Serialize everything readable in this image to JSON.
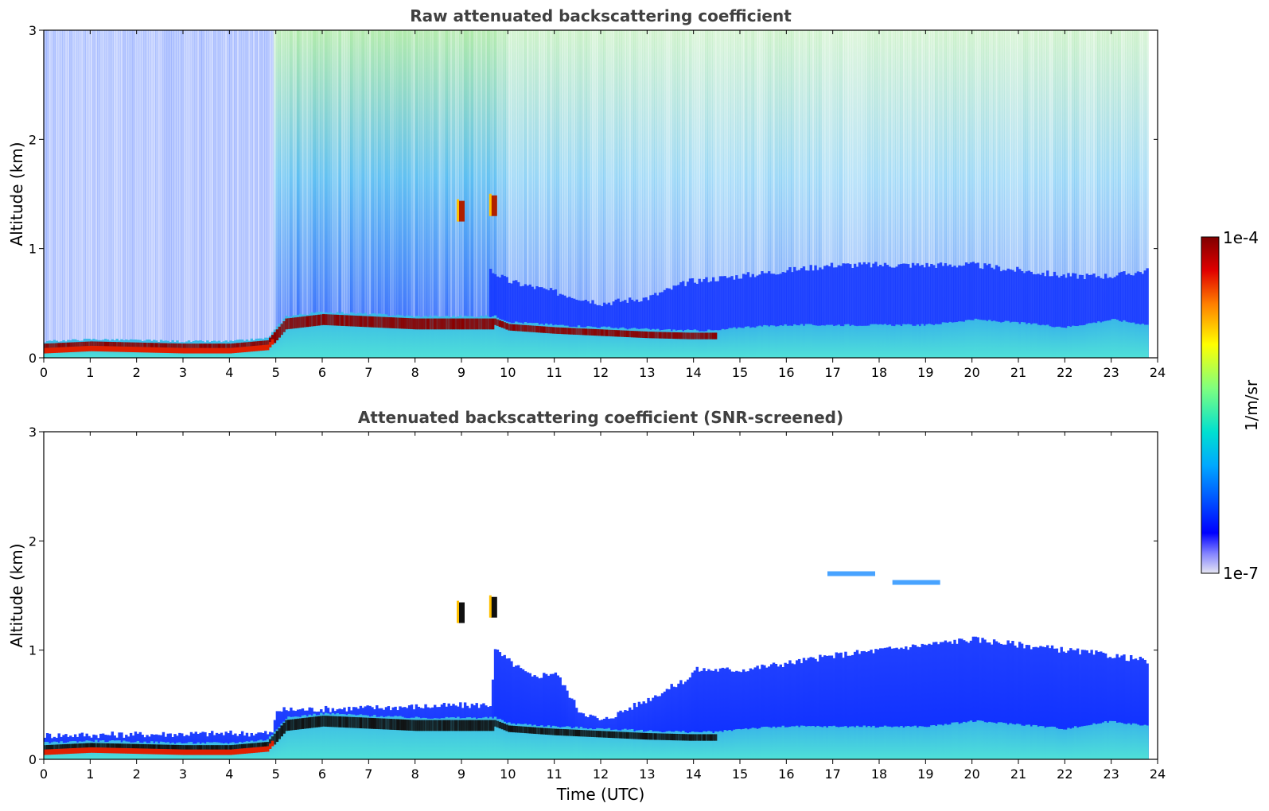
{
  "chart_data": [
    {
      "type": "heatmap",
      "title": "Raw attenuated backscattering coefficient",
      "xlabel": "",
      "ylabel": "Altitude (km)",
      "xlim": [
        0,
        24
      ],
      "ylim": [
        0,
        3
      ],
      "x_ticks": [
        "0",
        "1",
        "2",
        "3",
        "4",
        "5",
        "6",
        "7",
        "8",
        "9",
        "10",
        "11",
        "12",
        "13",
        "14",
        "15",
        "16",
        "17",
        "18",
        "19",
        "20",
        "21",
        "22",
        "23",
        "24"
      ],
      "y_ticks": [
        "0",
        "1",
        "2",
        "3"
      ],
      "boundary_layer_top_km": {
        "x": [
          0,
          1,
          2,
          3,
          4,
          4.8,
          5.2,
          6,
          7,
          8,
          9,
          9.7,
          10,
          11,
          12,
          13,
          13.9,
          14.5,
          15,
          16,
          17,
          18,
          19,
          20,
          21,
          22,
          23,
          23.8
        ],
        "y": [
          0.15,
          0.17,
          0.16,
          0.15,
          0.15,
          0.18,
          0.38,
          0.42,
          0.4,
          0.38,
          0.38,
          0.38,
          0.33,
          0.3,
          0.28,
          0.26,
          0.25,
          0.25,
          0.28,
          0.3,
          0.3,
          0.3,
          0.3,
          0.35,
          0.32,
          0.28,
          0.35,
          0.3
        ]
      },
      "high_aerosol_layer_top_km": {
        "x": [
          9.6,
          10,
          11,
          12,
          13,
          13.9,
          15,
          16,
          17,
          18,
          19,
          20,
          21,
          22,
          23,
          23.8
        ],
        "y": [
          0.8,
          0.7,
          0.6,
          0.5,
          0.55,
          0.7,
          0.75,
          0.8,
          0.85,
          0.85,
          0.85,
          0.85,
          0.8,
          0.75,
          0.75,
          0.8
        ]
      },
      "noise_level": {
        "x": [
          0,
          4.9,
          5.0,
          9.7,
          10,
          14,
          24
        ],
        "y": [
          0.35,
          0.35,
          0.9,
          0.9,
          0.6,
          0.5,
          0.5
        ]
      },
      "cloud_features": [
        {
          "time": 9.0,
          "alt_km": 1.35
        },
        {
          "time": 9.7,
          "alt_km": 1.4
        }
      ]
    },
    {
      "type": "heatmap",
      "title": "Attenuated backscattering coefficient (SNR-screened)",
      "xlabel": "Time (UTC)",
      "ylabel": "Altitude (km)",
      "xlim": [
        0,
        24
      ],
      "ylim": [
        0,
        3
      ],
      "x_ticks": [
        "0",
        "1",
        "2",
        "3",
        "4",
        "5",
        "6",
        "7",
        "8",
        "9",
        "10",
        "11",
        "12",
        "13",
        "14",
        "15",
        "16",
        "17",
        "18",
        "19",
        "20",
        "21",
        "22",
        "23",
        "24"
      ],
      "y_ticks": [
        "0",
        "1",
        "2",
        "3"
      ],
      "screened_top_km": {
        "x": [
          0,
          4.9,
          5.0,
          9.6,
          9.7,
          10,
          10.5,
          11,
          11.5,
          12,
          13,
          13.9,
          14,
          15,
          16,
          17,
          18,
          19,
          20,
          21,
          22,
          23,
          23.8
        ],
        "y": [
          0.22,
          0.24,
          0.45,
          0.5,
          1.0,
          0.9,
          0.75,
          0.8,
          0.45,
          0.35,
          0.55,
          0.75,
          0.82,
          0.82,
          0.88,
          0.95,
          1.0,
          1.05,
          1.1,
          1.05,
          1.0,
          0.95,
          0.9
        ]
      },
      "boundary_layer_top_km": {
        "x": [
          0,
          1,
          2,
          3,
          4,
          4.8,
          5.2,
          6,
          7,
          8,
          9,
          9.7,
          10,
          11,
          12,
          13,
          13.9,
          14.5,
          15,
          16,
          17,
          18,
          19,
          20,
          21,
          22,
          23,
          23.8
        ],
        "y": [
          0.15,
          0.17,
          0.16,
          0.15,
          0.15,
          0.18,
          0.38,
          0.42,
          0.4,
          0.38,
          0.38,
          0.38,
          0.33,
          0.3,
          0.28,
          0.26,
          0.25,
          0.25,
          0.28,
          0.3,
          0.3,
          0.3,
          0.3,
          0.35,
          0.32,
          0.28,
          0.35,
          0.3
        ]
      },
      "cloud_features": [
        {
          "time": 9.0,
          "alt_km": 1.35
        },
        {
          "time": 9.7,
          "alt_km": 1.4
        }
      ],
      "upper_patches": [
        {
          "time": 18.8,
          "alt_km": 1.62
        },
        {
          "time": 17.4,
          "alt_km": 1.7
        }
      ]
    }
  ],
  "colorbar": {
    "label": "1/m/sr",
    "max_label": "1e-4",
    "min_label": "1e-7",
    "scale": "log",
    "colors": [
      "#e6e6f2",
      "#0000ff",
      "#00bfff",
      "#00e0d0",
      "#7fff7f",
      "#ffff00",
      "#ff8000",
      "#e00000",
      "#800000"
    ]
  }
}
